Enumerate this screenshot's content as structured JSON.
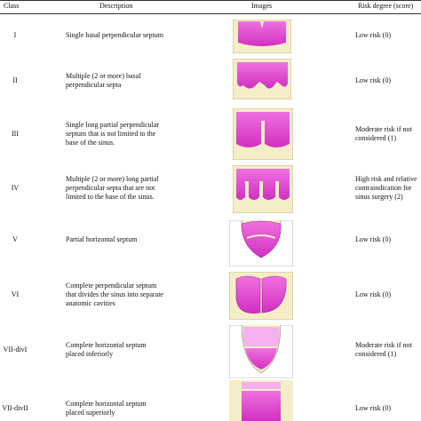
{
  "table": {
    "header": [
      "Class",
      "Description",
      "Images",
      "Risk degree (score)"
    ],
    "rows": [
      {
        "class": "I",
        "description": [
          "Single basal perpendicular septum"
        ],
        "risk": [
          "Low risk (0)"
        ]
      },
      {
        "class": "II",
        "description": [
          "Multiple (2 or more) basal",
          "perpendicular septa"
        ],
        "risk": [
          "Low risk (0)"
        ]
      },
      {
        "class": "III",
        "description": [
          "Single long partial perpendicular",
          "septum that is not limited to the",
          "base of the sinus."
        ],
        "risk": [
          "Moderate risk if not",
          "considered (1)"
        ]
      },
      {
        "class": "IV",
        "description": [
          "Multiple (2 or more) long partial",
          "perpendicular septa that are not",
          "limited to the base of the sinus."
        ],
        "risk": [
          "High risk and relative",
          "contraindication for",
          "sinus surgery (2)"
        ]
      },
      {
        "class": "V",
        "description": [
          "Partial horizontal septum"
        ],
        "risk": [
          "Low risk (0)"
        ]
      },
      {
        "class": "VI",
        "description": [
          "Complete perpendicular septum",
          "that divides the sinus into separate",
          "anatomic cavities"
        ],
        "risk": [
          "Low risk (0)"
        ]
      },
      {
        "class": "VII-divI",
        "description": [
          "Complete horizontal septum",
          "placed inferiorly"
        ],
        "risk": [
          "Moderate risk if not",
          "considered (1)"
        ]
      },
      {
        "class": "VII-divII",
        "description": [
          "Complete horizontal septum",
          "placed superiorly"
        ],
        "risk": [
          "Low risk (0)"
        ]
      }
    ]
  }
}
